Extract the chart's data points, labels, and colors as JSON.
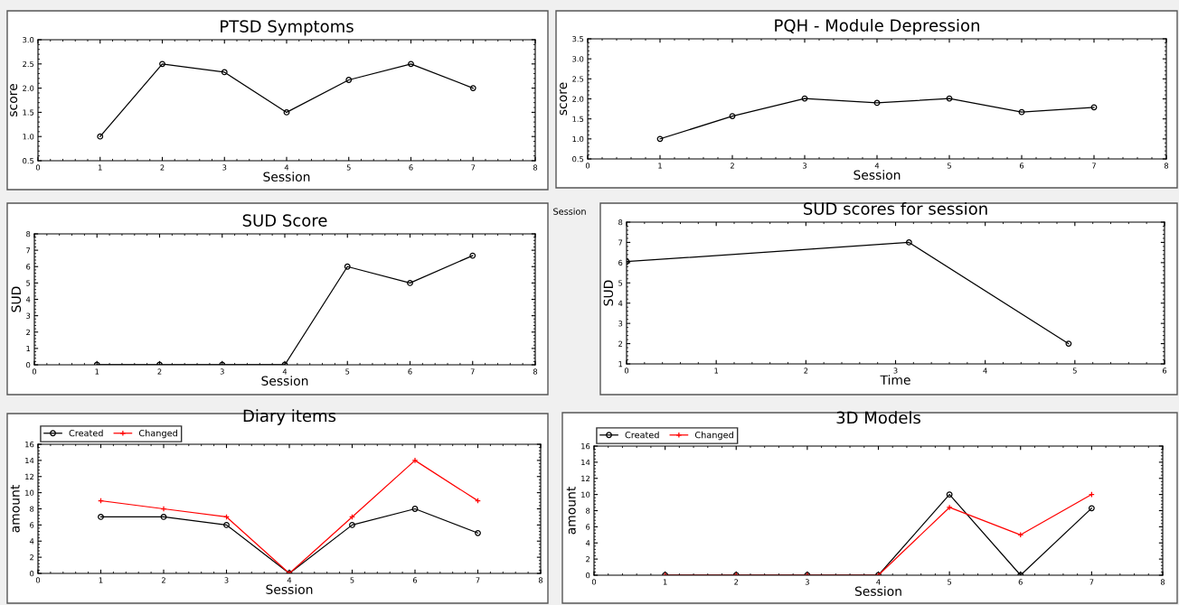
{
  "chart_data": [
    {
      "type": "line",
      "title": "PTSD Symptoms",
      "xlabel": "Session",
      "ylabel": "score",
      "x": [
        1,
        2,
        3,
        4,
        5,
        6,
        7
      ],
      "marker": "circle",
      "series": [
        {
          "color": "#000000",
          "values": [
            1.0,
            2.5,
            2.33,
            1.5,
            2.17,
            2.5,
            2.0
          ]
        }
      ],
      "xlim": [
        0,
        8
      ],
      "xticks": [
        0,
        1,
        2,
        3,
        4,
        5,
        6,
        7,
        8
      ],
      "ylim": [
        0.5,
        3.0
      ],
      "yticks": [
        {
          "value": 0.5,
          "label": "0.5"
        },
        {
          "value": 1.0,
          "label": "1.0"
        },
        {
          "value": 1.5,
          "label": "1.5"
        },
        {
          "value": 2.0,
          "label": "2.0"
        },
        {
          "value": 2.5,
          "label": "2.5"
        },
        {
          "value": 3.0,
          "label": "3.0"
        }
      ],
      "grid": false,
      "legend": false
    },
    {
      "type": "line",
      "title": "PQH - Module Depression",
      "xlabel": "Session",
      "ylabel": "score",
      "x": [
        1,
        2,
        3,
        4,
        5,
        6,
        7
      ],
      "marker": "circle",
      "series": [
        {
          "color": "#000000",
          "values": [
            1.0,
            1.57,
            2.01,
            1.9,
            2.01,
            1.67,
            1.79
          ]
        }
      ],
      "xlim": [
        0,
        8
      ],
      "xticks": [
        0,
        1,
        2,
        3,
        4,
        5,
        6,
        7,
        8
      ],
      "ylim": [
        0.5,
        3.5
      ],
      "yticks": [
        {
          "value": 0.5,
          "label": "0.5"
        },
        {
          "value": 1.0,
          "label": "1.0"
        },
        {
          "value": 1.5,
          "label": "1.5"
        },
        {
          "value": 2.0,
          "label": "2.0"
        },
        {
          "value": 2.5,
          "label": "2.5"
        },
        {
          "value": 3.0,
          "label": "3.0"
        },
        {
          "value": 3.5,
          "label": "3.5"
        }
      ],
      "grid": false,
      "legend": false
    },
    {
      "type": "line",
      "title": "SUD Score",
      "xlabel": "Session",
      "ylabel": "SUD",
      "x": [
        1,
        2,
        3,
        4,
        5,
        6,
        7
      ],
      "marker": "circle",
      "series": [
        {
          "color": "#000000",
          "values": [
            0,
            0,
            0,
            0,
            6,
            5,
            6.67
          ]
        }
      ],
      "xlim": [
        0,
        8
      ],
      "xticks": [
        0,
        1,
        2,
        3,
        4,
        5,
        6,
        7,
        8
      ],
      "ylim": [
        0,
        8
      ],
      "yticks": [
        0,
        1,
        2,
        3,
        4,
        5,
        6,
        7,
        8
      ],
      "grid": false,
      "legend": false
    },
    {
      "type": "line",
      "title": "SUD scores for session",
      "xlabel": "Time",
      "ylabel": "SUD",
      "x": [
        0,
        3.15,
        4.93
      ],
      "marker": "circle",
      "series": [
        {
          "color": "#000000",
          "values": [
            6.05,
            7,
            2
          ]
        }
      ],
      "xlim": [
        0,
        6
      ],
      "xticks": [
        0,
        1,
        2,
        3,
        4,
        5,
        6
      ],
      "ylim": [
        1,
        8
      ],
      "yticks": [
        1,
        2,
        3,
        4,
        5,
        6,
        7,
        8
      ],
      "grid": false,
      "legend": false,
      "annotations": [
        "Session"
      ]
    },
    {
      "type": "line",
      "title": "Diary items",
      "xlabel": "Session",
      "ylabel": "amount",
      "x": [
        1,
        2,
        3,
        4,
        5,
        6,
        7
      ],
      "series": [
        {
          "name": "Created",
          "color": "#000000",
          "marker": "circle",
          "values": [
            7,
            7,
            6,
            0,
            6,
            8,
            5
          ]
        },
        {
          "name": "Changed",
          "color": "#ff0000",
          "marker": "cross",
          "values": [
            9,
            8,
            7,
            0,
            7,
            14,
            9
          ]
        }
      ],
      "xlim": [
        0,
        8
      ],
      "xticks": [
        0,
        1,
        2,
        3,
        4,
        5,
        6,
        7,
        8
      ],
      "ylim": [
        0,
        16
      ],
      "yticks": [
        0,
        2,
        4,
        6,
        8,
        10,
        12,
        14,
        16
      ],
      "grid": false,
      "legend": "top left"
    },
    {
      "type": "line",
      "title": "3D Models",
      "xlabel": "Session",
      "ylabel": "amount",
      "x": [
        1,
        2,
        3,
        4,
        5,
        6,
        7
      ],
      "series": [
        {
          "name": "Created",
          "color": "#000000",
          "marker": "circle",
          "values": [
            0,
            0,
            0,
            0,
            10,
            0,
            8.3
          ]
        },
        {
          "name": "Changed",
          "color": "#ff0000",
          "marker": "cross",
          "values": [
            0,
            0,
            0,
            0,
            8.4,
            5,
            10
          ]
        }
      ],
      "xlim": [
        0,
        8
      ],
      "xticks": [
        0,
        1,
        2,
        3,
        4,
        5,
        6,
        7,
        8
      ],
      "ylim": [
        0,
        16
      ],
      "yticks": [
        0,
        2,
        4,
        6,
        8,
        10,
        12,
        14,
        16
      ],
      "grid": false,
      "legend": "top left"
    }
  ]
}
